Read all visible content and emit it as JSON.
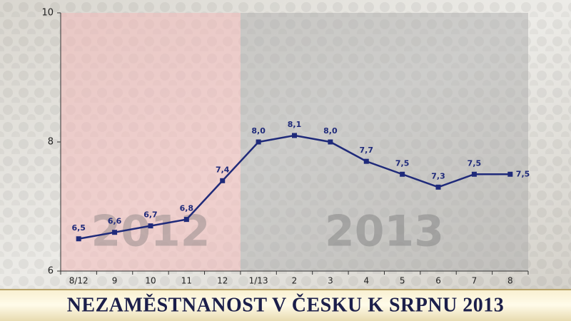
{
  "chart_data": {
    "type": "line",
    "title": "NEZAMĚSTNANOST V ČESKU K SRPNU 2013",
    "categories": [
      "8/12",
      "9",
      "10",
      "11",
      "12",
      "1/13",
      "2",
      "3",
      "4",
      "5",
      "6",
      "7",
      "8"
    ],
    "values": [
      6.5,
      6.6,
      6.7,
      6.8,
      7.4,
      8.0,
      8.1,
      8.0,
      7.7,
      7.5,
      7.3,
      7.5,
      7.5
    ],
    "value_labels": [
      "6,5",
      "6,6",
      "6,7",
      "6,8",
      "7,4",
      "8,0",
      "8,1",
      "8,0",
      "7,7",
      "7,5",
      "7,3",
      "7,5",
      "7,5"
    ],
    "color": "#1f2a7a",
    "ylim": [
      6,
      10
    ],
    "yticks": [
      6,
      8,
      10
    ],
    "annotations": [
      "2012",
      "2013"
    ]
  }
}
